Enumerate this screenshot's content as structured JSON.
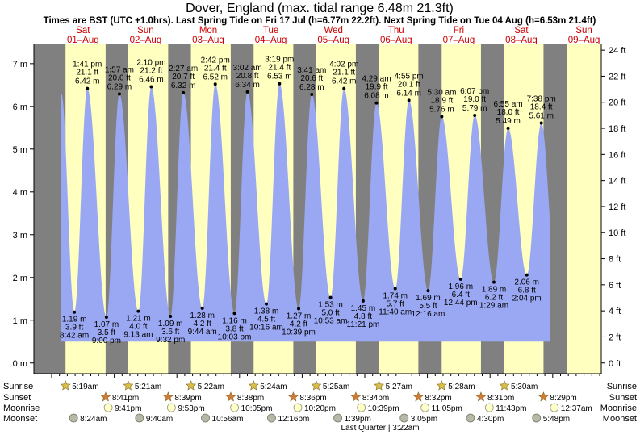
{
  "chart_data": {
    "type": "area",
    "title": "Dover, England (max. tidal range 6.48m 21.3ft)",
    "subtitle": "Times are BST (UTC +1.0hrs). Last Spring Tide on Fri 17 Jul (h=6.77m 22.2ft). Next Spring Tide on Tue 04 Aug (h=6.53m 21.4ft)",
    "ylim_m": [
      -0.25,
      7.45
    ],
    "yticks_m": [
      "0 m",
      "1 m",
      "2 m",
      "3 m",
      "4 m",
      "5 m",
      "6 m",
      "7 m"
    ],
    "yticks_ft": [
      "0 ft",
      "2 ft",
      "4 ft",
      "6 ft",
      "8 ft",
      "10 ft",
      "12 ft",
      "14 ft",
      "16 ft",
      "18 ft",
      "20 ft",
      "22 ft",
      "24 ft"
    ],
    "days": [
      {
        "name": "Sat",
        "date": "01–Aug"
      },
      {
        "name": "Sun",
        "date": "02–Aug"
      },
      {
        "name": "Mon",
        "date": "03–Aug"
      },
      {
        "name": "Tue",
        "date": "04–Aug"
      },
      {
        "name": "Wed",
        "date": "05–Aug"
      },
      {
        "name": "Thu",
        "date": "06–Aug"
      },
      {
        "name": "Fri",
        "date": "07–Aug"
      },
      {
        "name": "Sat",
        "date": "08–Aug"
      },
      {
        "name": "Sun",
        "date": "09–Aug"
      }
    ],
    "tides": [
      {
        "t": 8.7,
        "h": 1.19,
        "type": "low",
        "time": "8:42 am",
        "ft": "3.9 ft",
        "m": "1.19 m"
      },
      {
        "t": 13.68,
        "h": 6.42,
        "type": "high",
        "time": "1:41 pm",
        "ft": "21.1 ft",
        "m": "6.42 m"
      },
      {
        "t": 21.0,
        "h": 1.07,
        "type": "low",
        "time": "9:00 pm",
        "ft": "3.5 ft",
        "m": "1.07 m"
      },
      {
        "t": 25.95,
        "h": 6.29,
        "type": "high",
        "time": "1:57 am",
        "ft": "20.6 ft",
        "m": "6.29 m"
      },
      {
        "t": 33.22,
        "h": 1.21,
        "type": "low",
        "time": "9:13 am",
        "ft": "4.0 ft",
        "m": "1.21 m"
      },
      {
        "t": 38.17,
        "h": 6.46,
        "type": "high",
        "time": "2:10 pm",
        "ft": "21.2 ft",
        "m": "6.46 m"
      },
      {
        "t": 45.53,
        "h": 1.09,
        "type": "low",
        "time": "9:32 pm",
        "ft": "3.6 ft",
        "m": "1.09 m"
      },
      {
        "t": 50.45,
        "h": 6.32,
        "type": "high",
        "time": "2:27 am",
        "ft": "20.7 ft",
        "m": "6.32 m"
      },
      {
        "t": 57.73,
        "h": 1.28,
        "type": "low",
        "time": "9:44 am",
        "ft": "4.2 ft",
        "m": "1.28 m"
      },
      {
        "t": 62.7,
        "h": 6.52,
        "type": "high",
        "time": "2:42 pm",
        "ft": "21.4 ft",
        "m": "6.52 m"
      },
      {
        "t": 70.05,
        "h": 1.16,
        "type": "low",
        "time": "10:03 pm",
        "ft": "3.8 ft",
        "m": "1.16 m"
      },
      {
        "t": 75.03,
        "h": 6.34,
        "type": "high",
        "time": "3:02 am",
        "ft": "20.8 ft",
        "m": "6.34 m"
      },
      {
        "t": 82.27,
        "h": 1.38,
        "type": "low",
        "time": "10:16 am",
        "ft": "4.5 ft",
        "m": "1.38 m"
      },
      {
        "t": 87.32,
        "h": 6.53,
        "type": "high",
        "time": "3:19 pm",
        "ft": "21.4 ft",
        "m": "6.53 m"
      },
      {
        "t": 94.65,
        "h": 1.27,
        "type": "low",
        "time": "10:39 pm",
        "ft": "4.2 ft",
        "m": "1.27 m"
      },
      {
        "t": 99.68,
        "h": 6.28,
        "type": "high",
        "time": "3:41 am",
        "ft": "20.6 ft",
        "m": "6.28 m"
      },
      {
        "t": 106.88,
        "h": 1.53,
        "type": "low",
        "time": "10:53 am",
        "ft": "5.0 ft",
        "m": "1.53 m"
      },
      {
        "t": 112.03,
        "h": 6.42,
        "type": "high",
        "time": "4:02 pm",
        "ft": "21.1 ft",
        "m": "6.42 m"
      },
      {
        "t": 119.35,
        "h": 1.45,
        "type": "low",
        "time": "11:21 pm",
        "ft": "4.8 ft",
        "m": "1.45 m"
      },
      {
        "t": 124.48,
        "h": 6.08,
        "type": "high",
        "time": "4:29 am",
        "ft": "19.9 ft",
        "m": "6.08 m"
      },
      {
        "t": 131.67,
        "h": 1.74,
        "type": "low",
        "time": "11:40 am",
        "ft": "5.7 ft",
        "m": "1.74 m"
      },
      {
        "t": 136.92,
        "h": 6.14,
        "type": "high",
        "time": "4:55 pm",
        "ft": "20.1 ft",
        "m": "6.14 m"
      },
      {
        "t": 144.27,
        "h": 1.69,
        "type": "low",
        "time": "12:16 am",
        "ft": "5.5 ft",
        "m": "1.69 m"
      },
      {
        "t": 149.5,
        "h": 5.76,
        "type": "high",
        "time": "5:30 am",
        "ft": "18.9 ft",
        "m": "5.76 m"
      },
      {
        "t": 156.73,
        "h": 1.96,
        "type": "low",
        "time": "12:44 pm",
        "ft": "6.4 ft",
        "m": "1.96 m"
      },
      {
        "t": 162.12,
        "h": 5.79,
        "type": "high",
        "time": "6:07 pm",
        "ft": "19.0 ft",
        "m": "5.79 m"
      },
      {
        "t": 169.48,
        "h": 1.89,
        "type": "low",
        "time": "1:29 am",
        "ft": "6.2 ft",
        "m": "1.89 m"
      },
      {
        "t": 174.92,
        "h": 5.49,
        "type": "high",
        "time": "6:55 am",
        "ft": "18.0 ft",
        "m": "5.49 m"
      },
      {
        "t": 182.07,
        "h": 2.06,
        "type": "low",
        "time": "2:04 pm",
        "ft": "6.8 ft",
        "m": "2.06 m"
      },
      {
        "t": 187.63,
        "h": 5.61,
        "type": "high",
        "time": "7:38 pm",
        "ft": "18.4 ft",
        "m": "5.61 m"
      }
    ],
    "sun": [
      {
        "sunrise": "5:19am",
        "sunset": "8:41pm",
        "sunrise_h": 5.32,
        "sunset_h": 20.68
      },
      {
        "sunrise": "5:21am",
        "sunset": "8:39pm",
        "sunrise_h": 29.35,
        "sunset_h": 44.65
      },
      {
        "sunrise": "5:22am",
        "sunset": "8:38pm",
        "sunrise_h": 53.37,
        "sunset_h": 68.63
      },
      {
        "sunrise": "5:24am",
        "sunset": "8:36pm",
        "sunrise_h": 77.4,
        "sunset_h": 92.6
      },
      {
        "sunrise": "5:25am",
        "sunset": "8:34pm",
        "sunrise_h": 101.42,
        "sunset_h": 116.57
      },
      {
        "sunrise": "5:27am",
        "sunset": "8:32pm",
        "sunrise_h": 125.45,
        "sunset_h": 140.53
      },
      {
        "sunrise": "5:28am",
        "sunset": "8:31pm",
        "sunrise_h": 149.47,
        "sunset_h": 164.52
      },
      {
        "sunrise": "5:30am",
        "sunset": "8:29pm",
        "sunrise_h": 173.5,
        "sunset_h": 188.48
      }
    ],
    "moonrise": [
      {
        "time": "9:41pm",
        "h": 21.68
      },
      {
        "time": "9:53pm",
        "h": 45.88
      },
      {
        "time": "10:05pm",
        "h": 70.08
      },
      {
        "time": "10:20pm",
        "h": 94.33
      },
      {
        "time": "10:39pm",
        "h": 118.65
      },
      {
        "time": "11:05pm",
        "h": 143.08
      },
      {
        "time": "11:43pm",
        "h": 167.72
      },
      {
        "time": "12:37am",
        "h": 192.62
      }
    ],
    "moonset": [
      {
        "time": "8:24am",
        "h": 8.4
      },
      {
        "time": "9:40am",
        "h": 33.67
      },
      {
        "time": "10:56am",
        "h": 58.93
      },
      {
        "time": "12:16pm",
        "h": 84.27
      },
      {
        "time": "1:39pm",
        "h": 109.65
      },
      {
        "time": "3:05pm",
        "h": 135.08
      },
      {
        "time": "4:30pm",
        "h": 160.5
      },
      {
        "time": "5:48pm",
        "h": 185.8
      }
    ],
    "row_labels": {
      "sunrise": "Sunrise",
      "sunset": "Sunset",
      "moonrise": "Moonrise",
      "moonset": "Moonset"
    },
    "moon_phase": "Last Quarter | 3:22am",
    "colors": {
      "night": "#808080",
      "day": "#ffffc0",
      "water": "#9aa8f4",
      "axis": "#000000",
      "day_label": "#cc0000",
      "sunrise_star": "#d8c14a",
      "sunset_star": "#d07a3a",
      "moonrise_disc": "#ffffcc",
      "moonset_disc": "#b8b8a8"
    }
  }
}
